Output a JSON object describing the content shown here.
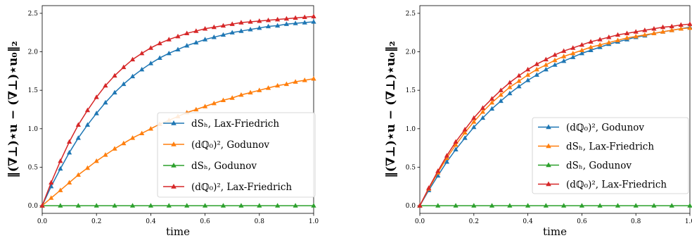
{
  "chart_data": [
    {
      "type": "line",
      "xlabel": "time",
      "ylabel": "‖(∇⊥)⋆u − (∇⊥)⋆u₀‖₂",
      "xlim": [
        0.0,
        1.0
      ],
      "ylim": [
        -0.1,
        2.6
      ],
      "xticks": [
        "0.0",
        "0.2",
        "0.4",
        "0.6",
        "0.8",
        "1.0"
      ],
      "yticks": [
        "0.0",
        "0.5",
        "1.0",
        "1.5",
        "2.0",
        "2.5"
      ],
      "grid": false,
      "legend_position": "lower-right",
      "series": [
        {
          "name": "dSₕ, Lax-Friedrich",
          "color": "#1f77b4",
          "marker": "triangle-up",
          "x": [
            0.0,
            0.033,
            0.067,
            0.1,
            0.133,
            0.167,
            0.2,
            0.233,
            0.267,
            0.3,
            0.333,
            0.367,
            0.4,
            0.433,
            0.467,
            0.5,
            0.533,
            0.567,
            0.6,
            0.633,
            0.667,
            0.7,
            0.733,
            0.767,
            0.8,
            0.833,
            0.867,
            0.9,
            0.933,
            0.967,
            1.0
          ],
          "y": [
            0.0,
            0.25,
            0.48,
            0.69,
            0.88,
            1.05,
            1.2,
            1.34,
            1.47,
            1.58,
            1.68,
            1.77,
            1.85,
            1.92,
            1.98,
            2.03,
            2.08,
            2.12,
            2.16,
            2.19,
            2.22,
            2.25,
            2.27,
            2.29,
            2.31,
            2.33,
            2.34,
            2.36,
            2.37,
            2.38,
            2.39
          ]
        },
        {
          "name": "(dℚ₀)², Godunov",
          "color": "#ff7f0e",
          "marker": "triangle-up",
          "x": [
            0.0,
            0.033,
            0.067,
            0.1,
            0.133,
            0.167,
            0.2,
            0.233,
            0.267,
            0.3,
            0.333,
            0.367,
            0.4,
            0.433,
            0.467,
            0.5,
            0.533,
            0.567,
            0.6,
            0.633,
            0.667,
            0.7,
            0.733,
            0.767,
            0.8,
            0.833,
            0.867,
            0.9,
            0.933,
            0.967,
            1.0
          ],
          "y": [
            0.0,
            0.1,
            0.2,
            0.3,
            0.4,
            0.49,
            0.58,
            0.66,
            0.74,
            0.81,
            0.88,
            0.94,
            1.0,
            1.06,
            1.11,
            1.16,
            1.21,
            1.25,
            1.29,
            1.33,
            1.37,
            1.4,
            1.44,
            1.47,
            1.5,
            1.53,
            1.56,
            1.58,
            1.61,
            1.63,
            1.65
          ]
        },
        {
          "name": "dSₕ, Godunov",
          "color": "#2ca02c",
          "marker": "triangle-up",
          "x": [
            0.0,
            0.067,
            0.133,
            0.2,
            0.267,
            0.333,
            0.4,
            0.467,
            0.533,
            0.6,
            0.667,
            0.733,
            0.8,
            0.867,
            0.933,
            1.0
          ],
          "y": [
            0,
            0,
            0,
            0,
            0,
            0,
            0,
            0,
            0,
            0,
            0,
            0,
            0,
            0,
            0,
            0
          ]
        },
        {
          "name": "(dℚ₀)², Lax-Friedrich",
          "color": "#d62728",
          "marker": "triangle-up",
          "x": [
            0.0,
            0.033,
            0.067,
            0.1,
            0.133,
            0.167,
            0.2,
            0.233,
            0.267,
            0.3,
            0.333,
            0.367,
            0.4,
            0.433,
            0.467,
            0.5,
            0.533,
            0.567,
            0.6,
            0.633,
            0.667,
            0.7,
            0.733,
            0.767,
            0.8,
            0.833,
            0.867,
            0.9,
            0.933,
            0.967,
            1.0
          ],
          "y": [
            0.0,
            0.3,
            0.58,
            0.83,
            1.05,
            1.24,
            1.41,
            1.56,
            1.69,
            1.8,
            1.9,
            1.98,
            2.05,
            2.11,
            2.16,
            2.2,
            2.24,
            2.27,
            2.3,
            2.32,
            2.34,
            2.36,
            2.38,
            2.39,
            2.4,
            2.41,
            2.42,
            2.43,
            2.44,
            2.45,
            2.46
          ]
        }
      ]
    },
    {
      "type": "line",
      "xlabel": "time",
      "ylabel": "‖(∇⊥)⋆u − (∇⊥)⋆u₀‖₂",
      "xlim": [
        0.0,
        1.0
      ],
      "ylim": [
        -0.1,
        2.6
      ],
      "xticks": [
        "0.0",
        "0.2",
        "0.4",
        "0.6",
        "0.8",
        "1.0"
      ],
      "yticks": [
        "0.0",
        "0.5",
        "1.0",
        "1.5",
        "2.0",
        "2.5"
      ],
      "grid": false,
      "legend_position": "lower-right",
      "series": [
        {
          "name": "(dℚ₀)², Godunov",
          "color": "#1f77b4",
          "marker": "triangle-up",
          "x": [
            0.0,
            0.033,
            0.067,
            0.1,
            0.133,
            0.167,
            0.2,
            0.233,
            0.267,
            0.3,
            0.333,
            0.367,
            0.4,
            0.433,
            0.467,
            0.5,
            0.533,
            0.567,
            0.6,
            0.633,
            0.667,
            0.7,
            0.733,
            0.767,
            0.8,
            0.833,
            0.867,
            0.9,
            0.933,
            0.967,
            1.0
          ],
          "y": [
            0.0,
            0.2,
            0.39,
            0.57,
            0.73,
            0.88,
            1.02,
            1.14,
            1.26,
            1.36,
            1.46,
            1.55,
            1.63,
            1.7,
            1.77,
            1.83,
            1.88,
            1.93,
            1.98,
            2.02,
            2.06,
            2.1,
            2.13,
            2.16,
            2.19,
            2.21,
            2.24,
            2.26,
            2.28,
            2.3,
            2.32
          ]
        },
        {
          "name": "dSₕ, Lax-Friedrich",
          "color": "#ff7f0e",
          "marker": "triangle-up",
          "x": [
            0.0,
            0.033,
            0.067,
            0.1,
            0.133,
            0.167,
            0.2,
            0.233,
            0.267,
            0.3,
            0.333,
            0.367,
            0.4,
            0.433,
            0.467,
            0.5,
            0.533,
            0.567,
            0.6,
            0.633,
            0.667,
            0.7,
            0.733,
            0.767,
            0.8,
            0.833,
            0.867,
            0.9,
            0.933,
            0.967,
            1.0
          ],
          "y": [
            0.0,
            0.22,
            0.43,
            0.62,
            0.79,
            0.95,
            1.09,
            1.22,
            1.34,
            1.44,
            1.54,
            1.62,
            1.7,
            1.77,
            1.83,
            1.89,
            1.94,
            1.98,
            2.02,
            2.06,
            2.09,
            2.12,
            2.15,
            2.18,
            2.2,
            2.22,
            2.24,
            2.26,
            2.28,
            2.3,
            2.31
          ]
        },
        {
          "name": "dSₕ, Godunov",
          "color": "#2ca02c",
          "marker": "triangle-up",
          "x": [
            0.0,
            0.067,
            0.133,
            0.2,
            0.267,
            0.333,
            0.4,
            0.467,
            0.533,
            0.6,
            0.667,
            0.733,
            0.8,
            0.867,
            0.933,
            1.0
          ],
          "y": [
            0,
            0,
            0,
            0,
            0,
            0,
            0,
            0,
            0,
            0,
            0,
            0,
            0,
            0,
            0,
            0
          ]
        },
        {
          "name": "(dℚ₀)², Lax-Friedrich",
          "color": "#d62728",
          "marker": "triangle-up",
          "x": [
            0.0,
            0.033,
            0.067,
            0.1,
            0.133,
            0.167,
            0.2,
            0.233,
            0.267,
            0.3,
            0.333,
            0.367,
            0.4,
            0.433,
            0.467,
            0.5,
            0.533,
            0.567,
            0.6,
            0.633,
            0.667,
            0.7,
            0.733,
            0.767,
            0.8,
            0.833,
            0.867,
            0.9,
            0.933,
            0.967,
            1.0
          ],
          "y": [
            0.0,
            0.23,
            0.45,
            0.65,
            0.83,
            0.99,
            1.14,
            1.27,
            1.39,
            1.5,
            1.6,
            1.69,
            1.77,
            1.84,
            1.9,
            1.96,
            2.01,
            2.05,
            2.09,
            2.13,
            2.16,
            2.19,
            2.22,
            2.24,
            2.26,
            2.28,
            2.3,
            2.32,
            2.33,
            2.35,
            2.36
          ]
        }
      ]
    }
  ]
}
